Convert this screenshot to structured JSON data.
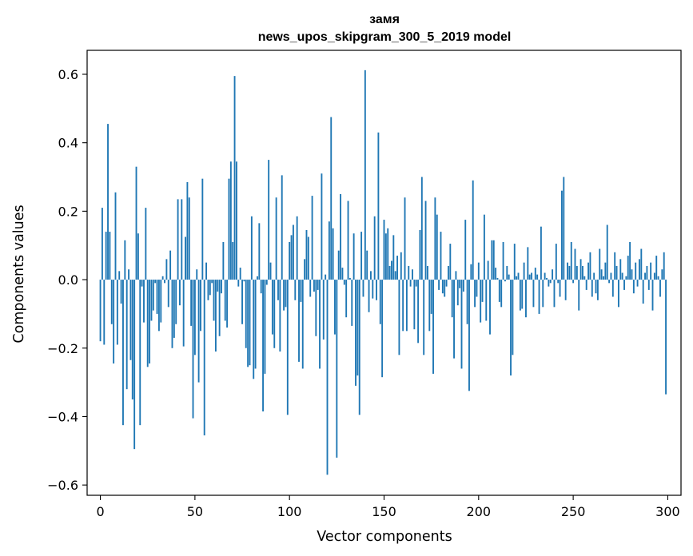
{
  "chart_data": {
    "type": "bar",
    "title": "замя",
    "subtitle": "news_upos_skipgram_300_5_2019 model",
    "xlabel": "Vector components",
    "ylabel": "Components values",
    "xlim": [
      -7,
      307
    ],
    "ylim": [
      -0.63,
      0.67
    ],
    "xticks": [
      0,
      50,
      100,
      150,
      200,
      250,
      300
    ],
    "yticks": [
      -0.6,
      -0.4,
      -0.2,
      0.0,
      0.2,
      0.4,
      0.6
    ],
    "ytick_labels": [
      "−0.6",
      "−0.4",
      "−0.2",
      "0.0",
      "0.2",
      "0.4",
      "0.6"
    ],
    "grid": false,
    "bar_color": "#1f77b4",
    "values": [
      -0.18,
      0.21,
      -0.19,
      0.14,
      0.455,
      0.14,
      -0.13,
      -0.245,
      0.255,
      -0.19,
      0.025,
      -0.07,
      -0.425,
      0.115,
      -0.32,
      0.03,
      -0.235,
      -0.35,
      -0.495,
      0.33,
      0.135,
      -0.425,
      -0.02,
      -0.125,
      0.21,
      -0.255,
      -0.245,
      -0.12,
      -0.09,
      -0.01,
      -0.1,
      -0.15,
      -0.125,
      0.01,
      -0.01,
      0.06,
      -0.08,
      0.085,
      -0.2,
      -0.17,
      -0.13,
      0.235,
      -0.075,
      0.235,
      -0.195,
      0.125,
      0.285,
      0.24,
      -0.135,
      -0.405,
      -0.22,
      0.03,
      -0.3,
      -0.15,
      0.295,
      -0.455,
      0.05,
      -0.06,
      -0.045,
      -0.01,
      -0.12,
      -0.21,
      -0.035,
      -0.165,
      -0.04,
      0.11,
      -0.12,
      -0.14,
      0.295,
      0.345,
      0.11,
      0.595,
      0.345,
      -0.02,
      0.035,
      -0.13,
      -0.005,
      -0.2,
      -0.255,
      -0.25,
      0.185,
      -0.29,
      -0.26,
      0.01,
      0.165,
      -0.04,
      -0.385,
      -0.275,
      -0.015,
      0.35,
      0.05,
      -0.16,
      -0.2,
      0.24,
      -0.06,
      -0.21,
      0.305,
      -0.09,
      -0.08,
      -0.395,
      0.11,
      0.13,
      0.16,
      -0.06,
      0.185,
      -0.24,
      -0.065,
      -0.26,
      0.06,
      0.145,
      0.125,
      -0.05,
      0.245,
      -0.035,
      -0.165,
      -0.03,
      -0.26,
      0.31,
      -0.175,
      0.015,
      -0.57,
      0.17,
      0.475,
      0.15,
      -0.16,
      -0.52,
      0.085,
      0.25,
      0.035,
      -0.015,
      -0.11,
      0.23,
      0.005,
      -0.135,
      0.135,
      -0.31,
      -0.28,
      -0.395,
      0.14,
      -0.05,
      0.612,
      0.085,
      -0.095,
      0.025,
      -0.055,
      0.185,
      -0.06,
      0.43,
      -0.13,
      -0.285,
      0.175,
      0.135,
      0.15,
      0.04,
      0.055,
      0.13,
      0.025,
      0.07,
      -0.22,
      0.08,
      -0.15,
      0.24,
      -0.15,
      0.04,
      -0.02,
      0.03,
      -0.145,
      -0.02,
      -0.185,
      0.145,
      0.3,
      -0.22,
      0.23,
      0.04,
      -0.15,
      -0.1,
      -0.275,
      0.24,
      0.19,
      -0.03,
      0.14,
      -0.04,
      -0.05,
      -0.02,
      0.04,
      0.105,
      -0.11,
      -0.23,
      0.025,
      -0.075,
      -0.025,
      -0.26,
      -0.035,
      0.175,
      -0.13,
      -0.325,
      0.045,
      0.29,
      -0.08,
      -0.05,
      0.05,
      -0.125,
      -0.065,
      0.19,
      -0.12,
      0.055,
      -0.16,
      0.115,
      0.115,
      0.035,
      0.005,
      -0.065,
      -0.08,
      0.11,
      -0.005,
      0.04,
      0.015,
      -0.28,
      -0.22,
      0.105,
      0.01,
      0.02,
      -0.09,
      -0.085,
      0.05,
      -0.11,
      0.095,
      0.015,
      0.02,
      -0.08,
      0.035,
      0.015,
      -0.1,
      0.155,
      -0.08,
      0.02,
      0.005,
      -0.02,
      -0.01,
      0.03,
      -0.08,
      0.105,
      -0.01,
      -0.05,
      0.26,
      0.3,
      -0.06,
      0.05,
      0.04,
      0.11,
      -0.01,
      0.09,
      0.04,
      -0.09,
      0.06,
      0.04,
      0.01,
      -0.03,
      0.05,
      0.08,
      -0.05,
      0.02,
      -0.04,
      -0.06,
      0.09,
      0.03,
      0.01,
      0.05,
      0.16,
      -0.01,
      0.02,
      -0.05,
      0.08,
      0.04,
      -0.08,
      0.06,
      0.02,
      -0.03,
      0.01,
      0.07,
      0.11,
      0.03,
      -0.04,
      0.05,
      -0.02,
      0.06,
      0.09,
      -0.07,
      0.02,
      0.04,
      -0.03,
      0.05,
      -0.09,
      0.02,
      0.07,
      0.01,
      -0.05,
      0.03,
      0.08,
      -0.335
    ]
  }
}
